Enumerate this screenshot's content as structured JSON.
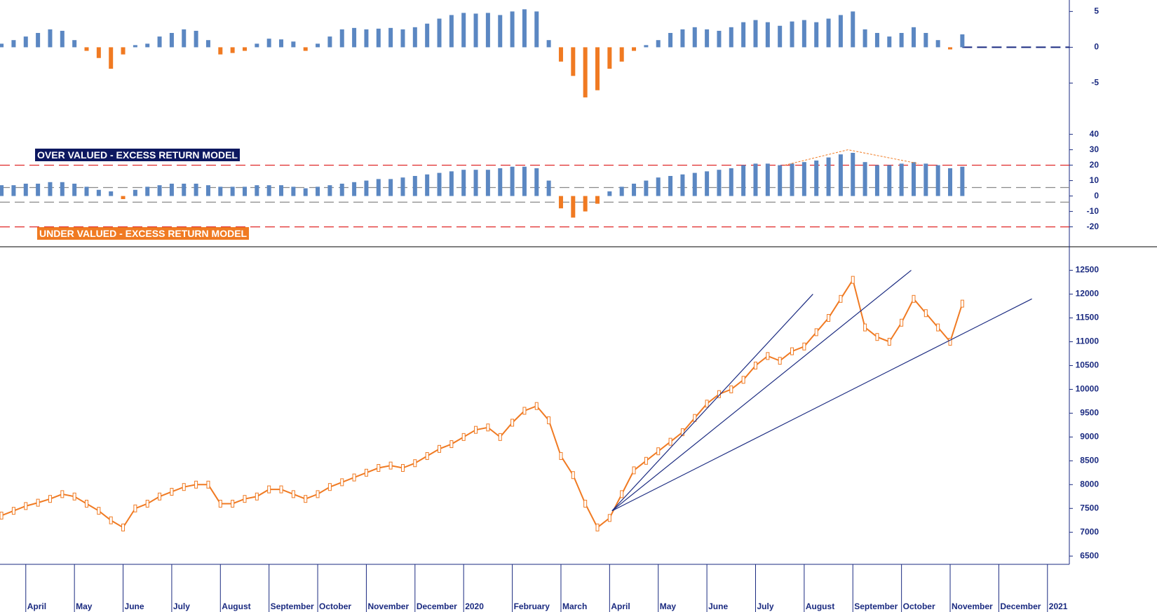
{
  "chart_data": [
    {
      "type": "bar",
      "x": [
        -0.5,
        -0.25,
        0,
        0.25,
        0.5,
        0.75,
        1,
        1.25,
        1.5,
        1.75,
        2,
        2.25,
        2.5,
        2.75,
        3,
        3.25,
        3.5,
        3.75,
        4,
        4.25,
        4.5,
        4.75,
        5,
        5.25,
        5.5,
        5.75,
        6,
        6.25,
        6.5,
        6.75,
        7,
        7.25,
        7.5,
        7.75,
        8,
        8.25,
        8.5,
        8.75,
        9,
        9.25,
        9.5,
        9.75,
        10,
        10.25,
        10.5,
        10.75,
        11,
        11.25,
        11.5,
        11.75,
        12,
        12.25,
        12.5,
        12.75,
        13,
        13.25,
        13.5,
        13.75,
        14,
        14.25,
        14.5,
        14.75,
        15,
        15.25,
        15.5,
        15.75,
        16,
        16.25,
        16.5,
        16.75,
        17,
        17.25,
        17.5,
        17.75,
        18,
        18.25,
        18.5,
        18.75,
        19,
        19.25
      ],
      "values": [
        0.5,
        1,
        1.5,
        2,
        2.5,
        2.3,
        1,
        -0.5,
        -1.5,
        -3,
        -1,
        0.3,
        0.5,
        1.5,
        2,
        2.5,
        2.3,
        1,
        -1,
        -0.8,
        -0.5,
        0.5,
        1.2,
        1.1,
        0.8,
        -0.5,
        0.5,
        1.5,
        2.5,
        2.7,
        2.5,
        2.6,
        2.7,
        2.5,
        2.8,
        3.3,
        4,
        4.5,
        4.8,
        4.7,
        4.8,
        4.5,
        5,
        5.3,
        5,
        1,
        -2,
        -4,
        -7,
        -6,
        -3,
        -2,
        -0.5,
        0.3,
        1,
        2,
        2.5,
        2.8,
        2.5,
        2.3,
        2.8,
        3.5,
        3.8,
        3.5,
        3,
        3.6,
        3.8,
        3.5,
        4,
        4.5,
        5,
        2.5,
        2,
        1.5,
        2,
        2.8,
        2,
        1,
        -0.3,
        1.8
      ],
      "color": "#5b87c2",
      "negative_color": "#f07a22",
      "ylim": [
        -11.9,
        6.6
      ],
      "yticks": [
        5,
        0,
        -5
      ],
      "reference_lines": [
        {
          "value": 0,
          "color": "#1a2a80"
        }
      ]
    },
    {
      "type": "bar",
      "x": [
        -0.5,
        -0.25,
        0,
        0.25,
        0.5,
        0.75,
        1,
        1.25,
        1.5,
        1.75,
        2,
        2.25,
        2.5,
        2.75,
        3,
        3.25,
        3.5,
        3.75,
        4,
        4.25,
        4.5,
        4.75,
        5,
        5.25,
        5.5,
        5.75,
        6,
        6.25,
        6.5,
        6.75,
        7,
        7.25,
        7.5,
        7.75,
        8,
        8.25,
        8.5,
        8.75,
        9,
        9.25,
        9.5,
        9.75,
        10,
        10.25,
        10.5,
        10.75,
        11,
        11.25,
        11.5,
        11.75,
        12,
        12.25,
        12.5,
        12.75,
        13,
        13.25,
        13.5,
        13.75,
        14,
        14.25,
        14.5,
        14.75,
        15,
        15.25,
        15.5,
        15.75,
        16,
        16.25,
        16.5,
        16.75,
        17,
        17.25,
        17.5,
        17.75,
        18,
        18.25,
        18.5,
        18.75,
        19,
        19.25
      ],
      "values": [
        7,
        7,
        8,
        8,
        9,
        9,
        8,
        6,
        4,
        3,
        -2,
        4,
        6,
        7,
        8,
        8,
        8,
        7,
        6,
        6,
        6,
        7,
        7,
        7,
        6,
        5,
        6,
        7,
        8,
        9,
        10,
        11,
        11,
        12,
        13,
        14,
        15,
        16,
        17,
        17,
        17,
        18,
        19,
        19,
        18,
        10,
        -8,
        -14,
        -10,
        -5,
        3,
        6,
        8,
        10,
        12,
        13,
        14,
        15,
        16,
        17,
        18,
        20,
        21,
        21,
        20,
        21,
        22,
        23,
        25,
        27,
        28,
        22,
        20,
        20,
        21,
        22,
        21,
        20,
        18,
        19
      ],
      "color": "#5b87c2",
      "negative_color": "#f07a22",
      "ylim": [
        -32,
        43
      ],
      "yticks": [
        40,
        30,
        20,
        10,
        0,
        -10,
        -20
      ],
      "reference_lines": [
        {
          "value": 20,
          "color": "#e02828"
        },
        {
          "value": -20,
          "color": "#e02828"
        },
        {
          "value": 5.5,
          "color": "#8a8a8a"
        },
        {
          "value": -4,
          "color": "#8a8a8a"
        }
      ],
      "peak_line": {
        "x": [
          15.6,
          16.9,
          18.35
        ],
        "values": [
          20,
          30,
          21
        ],
        "color": "#f07a22"
      },
      "annotations": [
        "OVER VALUED - EXCESS RETURN MODEL",
        "UNDER VALUED - EXCESS RETURN MODEL"
      ]
    },
    {
      "type": "line",
      "x": [
        -0.5,
        -0.25,
        0,
        0.25,
        0.5,
        0.75,
        1,
        1.25,
        1.5,
        1.75,
        2,
        2.25,
        2.5,
        2.75,
        3,
        3.25,
        3.5,
        3.75,
        4,
        4.25,
        4.5,
        4.75,
        5,
        5.25,
        5.5,
        5.75,
        6,
        6.25,
        6.5,
        6.75,
        7,
        7.25,
        7.5,
        7.75,
        8,
        8.25,
        8.5,
        8.75,
        9,
        9.25,
        9.5,
        9.75,
        10,
        10.25,
        10.5,
        10.75,
        11,
        11.25,
        11.5,
        11.75,
        12,
        12.25,
        12.5,
        12.75,
        13,
        13.25,
        13.5,
        13.75,
        14,
        14.25,
        14.5,
        14.75,
        15,
        15.25,
        15.5,
        15.75,
        16,
        16.25,
        16.5,
        16.75,
        17,
        17.25,
        17.5,
        17.75,
        18,
        18.25,
        18.5,
        18.75,
        19,
        19.25
      ],
      "values": [
        7350,
        7450,
        7550,
        7620,
        7700,
        7800,
        7750,
        7600,
        7450,
        7250,
        7100,
        7500,
        7600,
        7750,
        7850,
        7950,
        8000,
        8000,
        7600,
        7600,
        7700,
        7750,
        7900,
        7900,
        7800,
        7700,
        7800,
        7950,
        8050,
        8150,
        8250,
        8350,
        8400,
        8350,
        8450,
        8600,
        8750,
        8850,
        9000,
        9150,
        9200,
        9000,
        9300,
        9550,
        9650,
        9350,
        8600,
        8200,
        7600,
        7100,
        7300,
        7800,
        8300,
        8500,
        8700,
        8900,
        9100,
        9400,
        9700,
        9900,
        10000,
        10200,
        10500,
        10700,
        10600,
        10800,
        10900,
        11200,
        11500,
        11900,
        12300,
        11300,
        11100,
        11000,
        11400,
        11900,
        11600,
        11300,
        11000,
        11800
      ],
      "color": "#f07a22",
      "ylim": [
        6400,
        12950
      ],
      "yticks": [
        12500,
        12000,
        11500,
        11000,
        10500,
        10000,
        9500,
        9000,
        8500,
        8000,
        7500,
        7000,
        6500
      ],
      "trendlines": [
        {
          "x": [
            12.05,
            16.18
          ],
          "values": [
            7450,
            12000
          ]
        },
        {
          "x": [
            12.05,
            18.2
          ],
          "values": [
            7450,
            12500
          ]
        },
        {
          "x": [
            12.05,
            20.68
          ],
          "values": [
            7450,
            11900
          ]
        }
      ],
      "trend_color": "#1a2a80",
      "xlim": [
        -0.53,
        21.45
      ],
      "xticks": [
        {
          "value": 0,
          "label": "April"
        },
        {
          "value": 1,
          "label": "May"
        },
        {
          "value": 2,
          "label": "June"
        },
        {
          "value": 3,
          "label": "July"
        },
        {
          "value": 4,
          "label": "August"
        },
        {
          "value": 5,
          "label": "September"
        },
        {
          "value": 6,
          "label": "October"
        },
        {
          "value": 7,
          "label": "November"
        },
        {
          "value": 8,
          "label": "December"
        },
        {
          "value": 9,
          "label": "2020"
        },
        {
          "value": 10,
          "label": "February"
        },
        {
          "value": 11,
          "label": "March"
        },
        {
          "value": 12,
          "label": "April"
        },
        {
          "value": 13,
          "label": "May"
        },
        {
          "value": 14,
          "label": "June"
        },
        {
          "value": 15,
          "label": "July"
        },
        {
          "value": 16,
          "label": "August"
        },
        {
          "value": 17,
          "label": "September"
        },
        {
          "value": 18,
          "label": "October"
        },
        {
          "value": 19,
          "label": "November"
        },
        {
          "value": 20,
          "label": "December"
        },
        {
          "value": 21,
          "label": "2021"
        }
      ]
    }
  ]
}
